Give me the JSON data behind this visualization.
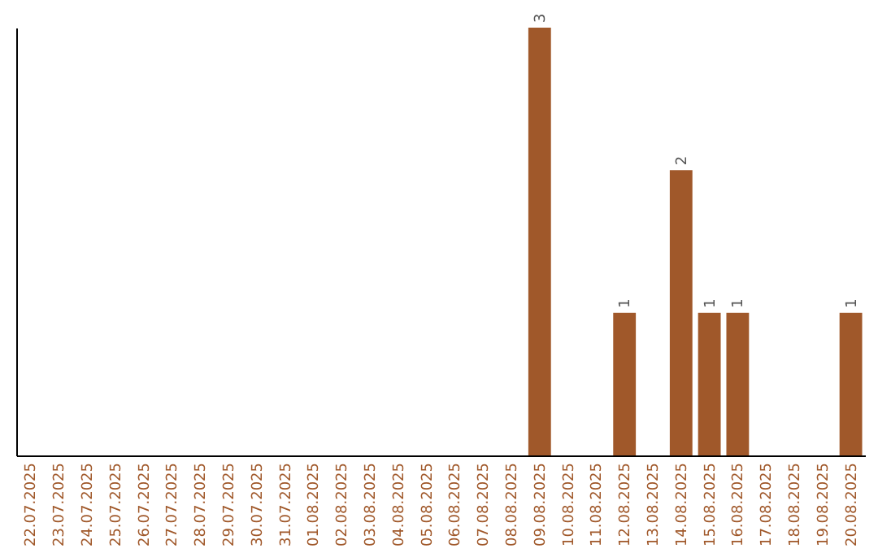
{
  "chart_data": {
    "type": "bar",
    "categories": [
      "22.07.2025",
      "23.07.2025",
      "24.07.2025",
      "25.07.2025",
      "26.07.2025",
      "27.07.2025",
      "28.07.2025",
      "29.07.2025",
      "30.07.2025",
      "31.07.2025",
      "01.08.2025",
      "02.08.2025",
      "03.08.2025",
      "04.08.2025",
      "05.08.2025",
      "06.08.2025",
      "07.08.2025",
      "08.08.2025",
      "09.08.2025",
      "10.08.2025",
      "11.08.2025",
      "12.08.2025",
      "13.08.2025",
      "14.08.2025",
      "15.08.2025",
      "16.08.2025",
      "17.08.2025",
      "18.08.2025",
      "19.08.2025",
      "20.08.2025"
    ],
    "values": [
      null,
      null,
      null,
      null,
      null,
      null,
      null,
      null,
      null,
      null,
      null,
      null,
      null,
      null,
      null,
      null,
      null,
      null,
      3,
      null,
      null,
      1,
      null,
      2,
      1,
      1,
      null,
      null,
      null,
      1
    ],
    "data_labels": true,
    "color": "#a0582a",
    "tick_labels": "x",
    "grid": false
  }
}
